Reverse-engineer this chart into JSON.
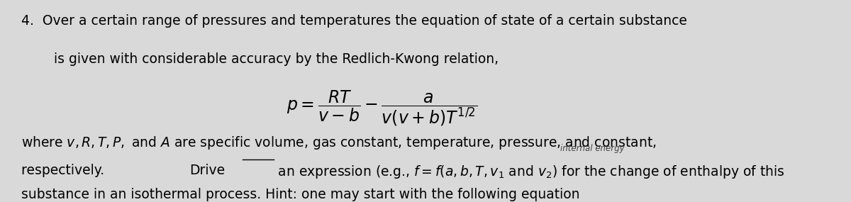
{
  "background_color": "#d9d9d9",
  "fig_width": 12.0,
  "fig_height": 2.85,
  "dpi": 100,
  "line1": "4.  Over a certain range of pressures and temperatures the equation of state of a certain substance",
  "line2": "is given with considerable accuracy by the Redlich-Kwong relation,",
  "equation": "$p = \\dfrac{RT}{v-b} - \\dfrac{a}{v(v+b)T^{1/2}}$",
  "line3": "where $v, R, T, P,$ and $A$ are specific volume, gas constant, temperature, pressure, and constant,",
  "line4_pre": "respectively. ",
  "line4_underline": "Drive",
  "line4_rest": " an expression (e.g., $f = f(a, b, T, v_1$ and $v_2)$ for the change of enthalpy of this",
  "line5": "substance in an isothermal process. Hint: one may start with the following equation",
  "annotation": "internal energy",
  "font_size_main": 13.5,
  "font_size_eq": 17,
  "text_color": "#000000",
  "annot_color": "#444444",
  "annot_fontsize": 8.5
}
